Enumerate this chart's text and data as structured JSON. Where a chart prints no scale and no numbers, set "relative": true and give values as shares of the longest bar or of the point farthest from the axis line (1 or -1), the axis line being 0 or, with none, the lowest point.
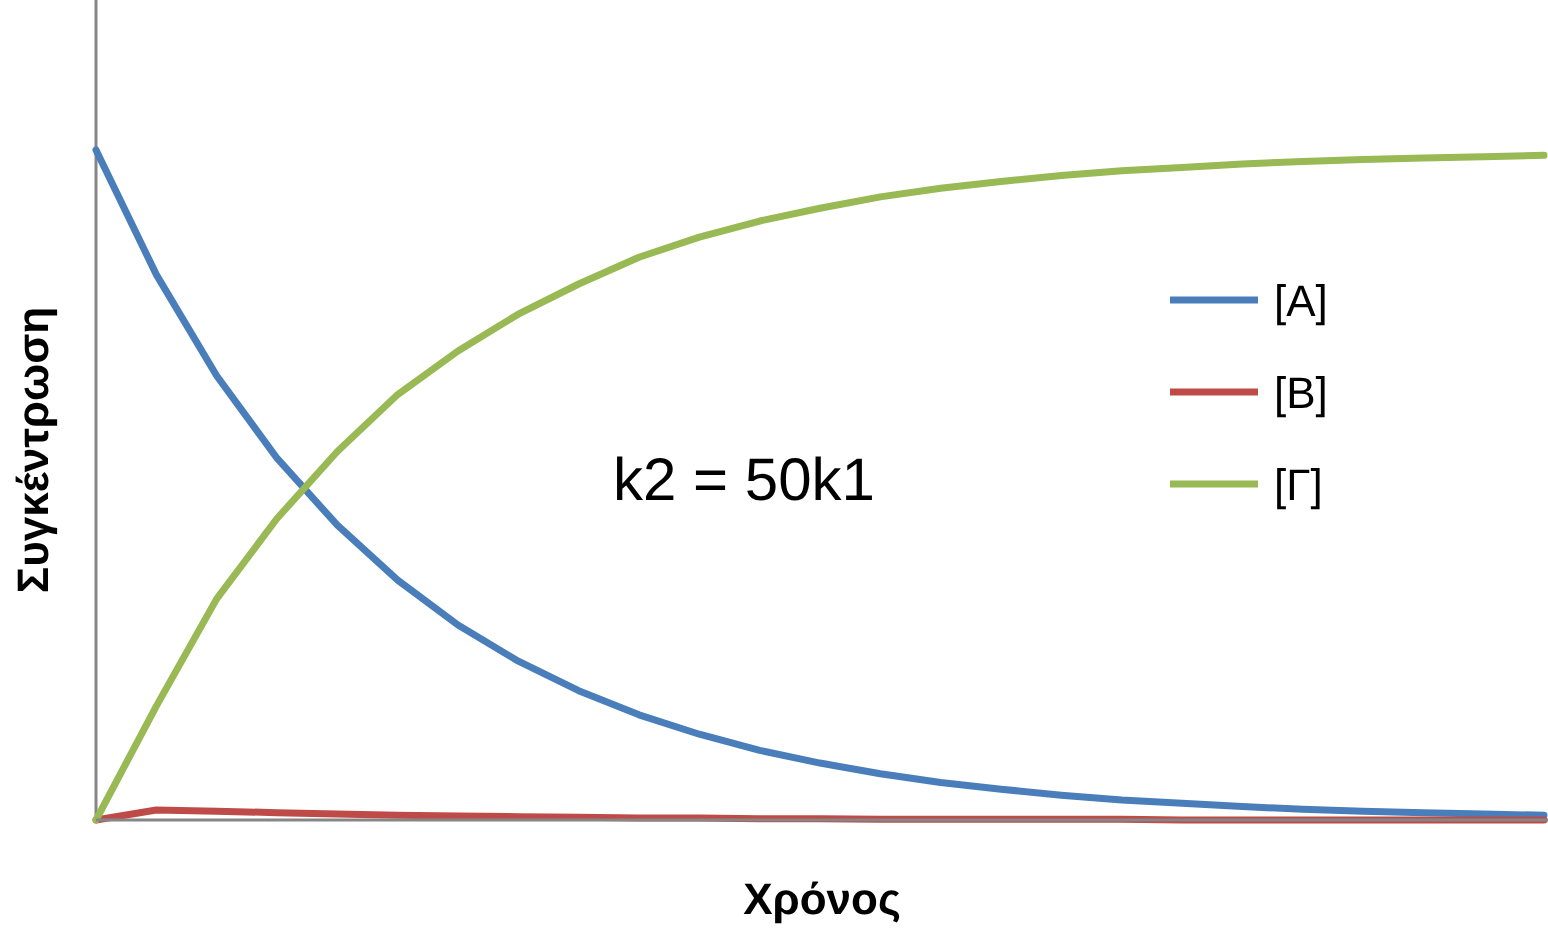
{
  "chart_data": {
    "type": "line",
    "relative": true,
    "xlabel": "Χρόνος",
    "ylabel": "Συγκέντρωση",
    "annotations": [
      "k2 = 50k1"
    ],
    "legend": "right",
    "line_style": "solid",
    "categories": [
      null,
      null,
      null,
      null,
      null,
      null,
      null,
      null,
      null,
      null,
      null,
      null,
      null,
      null,
      null,
      null,
      null,
      null,
      null,
      null,
      null,
      null,
      null,
      null,
      null
    ],
    "series": [
      {
        "name": "[Α]",
        "color": "#4a7ebb",
        "values": [
          1,
          0.814,
          0.663,
          0.54,
          0.44,
          0.358,
          0.291,
          0.237,
          0.193,
          0.157,
          0.128,
          0.104,
          0.085,
          0.069,
          0.056,
          0.046,
          0.037,
          0.03,
          0.025,
          0.02,
          0.016,
          0.013,
          0.011,
          0.009,
          0.007
        ]
      },
      {
        "name": "[Β]",
        "color": "#be4b48",
        "values": [
          0,
          0.015,
          0.013,
          0.011,
          0.009,
          0.007,
          0.006,
          0.005,
          0.004,
          0.003,
          0.003,
          0.002,
          0.002,
          0.001,
          0.001,
          0.001,
          0.001,
          0.001,
          0,
          0,
          0,
          0,
          0,
          0,
          0
        ]
      },
      {
        "name": "[Γ]",
        "color": "#98b954",
        "values": [
          0,
          0.17,
          0.33,
          0.45,
          0.55,
          0.635,
          0.7,
          0.755,
          0.8,
          0.84,
          0.87,
          0.894,
          0.913,
          0.93,
          0.943,
          0.953,
          0.962,
          0.969,
          0.974,
          0.979,
          0.983,
          0.986,
          0.988,
          0.99,
          0.992
        ]
      }
    ]
  }
}
